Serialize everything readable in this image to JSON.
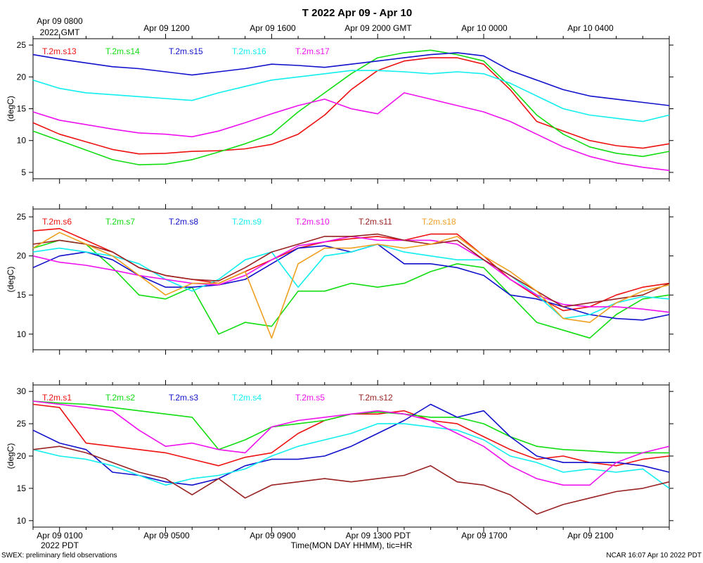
{
  "title": "T 2022 Apr 09 - Apr 10",
  "top_axis": {
    "labels": [
      "Apr 09 0800",
      "Apr 09 1200",
      "Apr 09 1600",
      "Apr 09 2000 GMT",
      "Apr 10 0000",
      "Apr 10 0400"
    ],
    "first_sub": "2022 GMT"
  },
  "bottom_axis": {
    "labels": [
      "Apr 09 0100",
      "Apr 09 0500",
      "Apr 09 0900",
      "Apr 09 1300 PDT",
      "Apr 09 1700",
      "Apr 09 2100"
    ],
    "first_sub": "2022 PDT",
    "xlabel": "Time(MON DAY HHMM), tic=HR"
  },
  "footer": {
    "left": "SWEX: preliminary field observations",
    "right": "NCAR 16:07 Apr 10 2022 PDT"
  },
  "colors": {
    "red": "#ee1111",
    "green": "#11dd11",
    "blue": "#1111cc",
    "cyan": "#11eeee",
    "magenta": "#ee11ee",
    "brown": "#992222",
    "orange": "#f0a020"
  },
  "chart_data": [
    {
      "type": "line",
      "ylabel": "(degC)",
      "ylim": [
        4,
        26
      ],
      "yticks": [
        5,
        10,
        15,
        20,
        25
      ],
      "xrange_hours": [
        0,
        24
      ],
      "series": [
        {
          "name": "T.2m.s13",
          "color": "red",
          "x": [
            0,
            1,
            2,
            3,
            4,
            5,
            6,
            7,
            8,
            9,
            10,
            11,
            12,
            13,
            14,
            15,
            16,
            17,
            18,
            19,
            20,
            21,
            22,
            23,
            24
          ],
          "y": [
            12.8,
            11,
            9.8,
            8.6,
            7.9,
            8,
            8.3,
            8.4,
            8.7,
            9.4,
            11,
            14,
            18,
            21,
            22.5,
            23,
            23,
            22,
            18,
            13,
            11.5,
            10,
            9.2,
            8.8,
            9.5
          ]
        },
        {
          "name": "T.2m.s14",
          "color": "green",
          "x": [
            0,
            1,
            2,
            3,
            4,
            5,
            6,
            7,
            8,
            9,
            10,
            11,
            12,
            13,
            14,
            15,
            16,
            17,
            18,
            19,
            20,
            21,
            22,
            23,
            24
          ],
          "y": [
            11.5,
            10,
            8.5,
            7,
            6.2,
            6.3,
            7,
            8.2,
            9.5,
            11,
            14.5,
            17.5,
            20.5,
            23,
            23.8,
            24.2,
            23.5,
            22.5,
            18.5,
            14,
            11,
            9,
            8,
            7.5,
            8.3
          ]
        },
        {
          "name": "T.2m.s15",
          "color": "blue",
          "x": [
            0,
            1,
            2,
            3,
            4,
            5,
            6,
            7,
            8,
            9,
            10,
            11,
            12,
            13,
            14,
            15,
            16,
            17,
            18,
            19,
            20,
            21,
            22,
            23,
            24
          ],
          "y": [
            23.5,
            22.8,
            22.2,
            21.6,
            21.3,
            20.8,
            20.3,
            20.8,
            21.3,
            22,
            21.8,
            21.5,
            22,
            22.5,
            23,
            23.5,
            23.8,
            23.3,
            21,
            19.5,
            18,
            17,
            16.5,
            16,
            15.5
          ]
        },
        {
          "name": "T.2m.s16",
          "color": "cyan",
          "x": [
            0,
            1,
            2,
            3,
            4,
            5,
            6,
            7,
            8,
            9,
            10,
            11,
            12,
            13,
            14,
            15,
            16,
            17,
            18,
            19,
            20,
            21,
            22,
            23,
            24
          ],
          "y": [
            19.5,
            18.2,
            17.5,
            17.2,
            16.9,
            16.6,
            16.3,
            17.5,
            18.5,
            19.5,
            20,
            20.5,
            21,
            21,
            20.8,
            20.5,
            20.8,
            20.5,
            19,
            17,
            15,
            14,
            13.5,
            13,
            14
          ]
        },
        {
          "name": "T.2m.s17",
          "color": "magenta",
          "x": [
            0,
            1,
            2,
            3,
            4,
            5,
            6,
            7,
            8,
            9,
            10,
            11,
            12,
            13,
            14,
            15,
            16,
            17,
            18,
            19,
            20,
            21,
            22,
            23,
            24
          ],
          "y": [
            14.5,
            13.2,
            12.5,
            11.8,
            11.2,
            11,
            10.6,
            11.5,
            12.8,
            14.2,
            15.5,
            16.5,
            15,
            14.2,
            17.5,
            16.5,
            15.5,
            14.5,
            13,
            11,
            9,
            7.5,
            6.5,
            5.8,
            5.3
          ]
        }
      ]
    },
    {
      "type": "line",
      "ylabel": "(degC)",
      "ylim": [
        8,
        26
      ],
      "yticks": [
        10,
        15,
        20,
        25
      ],
      "xrange_hours": [
        0,
        24
      ],
      "series": [
        {
          "name": "T.2m.s6",
          "color": "red",
          "x": [
            0,
            1,
            2,
            3,
            4,
            5,
            6,
            7,
            8,
            9,
            10,
            11,
            12,
            13,
            14,
            15,
            16,
            17,
            18,
            19,
            20,
            21,
            22,
            23,
            24
          ],
          "y": [
            23.2,
            23.5,
            22,
            20.5,
            18.5,
            17.5,
            17,
            16.5,
            18,
            19.5,
            21,
            21.8,
            22.2,
            22.5,
            22,
            22.8,
            22.8,
            20,
            17,
            14.8,
            13,
            13.5,
            15,
            16,
            16.5
          ]
        },
        {
          "name": "T.2m.s7",
          "color": "green",
          "x": [
            0,
            1,
            2,
            3,
            4,
            5,
            6,
            7,
            8,
            9,
            10,
            11,
            12,
            13,
            14,
            15,
            16,
            17,
            18,
            19,
            20,
            21,
            22,
            23,
            24
          ],
          "y": [
            21,
            22,
            21.5,
            18.5,
            15,
            14.5,
            16,
            10,
            11.5,
            11,
            15.5,
            15.5,
            16.5,
            16,
            16.5,
            18,
            19,
            18.5,
            15,
            11.5,
            10.5,
            9.5,
            12.5,
            14.5,
            15
          ]
        },
        {
          "name": "T.2m.s8",
          "color": "blue",
          "x": [
            0,
            1,
            2,
            3,
            4,
            5,
            6,
            7,
            8,
            9,
            10,
            11,
            12,
            13,
            14,
            15,
            16,
            17,
            18,
            19,
            20,
            21,
            22,
            23,
            24
          ],
          "y": [
            18.5,
            20,
            20.5,
            19.5,
            17.5,
            16,
            16,
            16.3,
            17,
            19,
            21,
            21.3,
            20.5,
            21.5,
            19,
            19,
            18.5,
            17.5,
            15,
            14.5,
            13.5,
            12.5,
            12,
            11.8,
            12.5
          ]
        },
        {
          "name": "T.2m.s9",
          "color": "cyan",
          "x": [
            0,
            1,
            2,
            3,
            4,
            5,
            6,
            7,
            8,
            9,
            10,
            11,
            12,
            13,
            14,
            15,
            16,
            17,
            18,
            19,
            20,
            21,
            22,
            23,
            24
          ],
          "y": [
            20.5,
            21,
            20.5,
            20,
            19,
            17,
            15.5,
            17,
            19.5,
            20.5,
            16,
            20,
            20.5,
            21.5,
            20.5,
            20,
            19.5,
            19.5,
            17.5,
            15,
            12,
            12.5,
            14,
            14.8,
            14.5
          ]
        },
        {
          "name": "T.2m.s10",
          "color": "magenta",
          "x": [
            0,
            1,
            2,
            3,
            4,
            5,
            6,
            7,
            8,
            9,
            10,
            11,
            12,
            13,
            14,
            15,
            16,
            17,
            18,
            19,
            20,
            21,
            22,
            23,
            24
          ],
          "y": [
            20,
            19.2,
            18.8,
            18.2,
            17.5,
            17,
            16.5,
            16.3,
            17.5,
            19.5,
            21.3,
            21.8,
            22.5,
            22,
            22,
            22,
            21.5,
            19.5,
            17,
            15,
            13.8,
            13.5,
            13.5,
            13.2,
            12.8
          ]
        },
        {
          "name": "T.2m.s11",
          "color": "brown",
          "x": [
            0,
            1,
            2,
            3,
            4,
            5,
            6,
            7,
            8,
            9,
            10,
            11,
            12,
            13,
            14,
            15,
            16,
            17,
            18,
            19,
            20,
            21,
            22,
            23,
            24
          ],
          "y": [
            21.5,
            22,
            21.5,
            20.5,
            18.5,
            17.5,
            17,
            16.8,
            18.5,
            20.5,
            21.5,
            22.5,
            22.5,
            22.8,
            22,
            21.5,
            22,
            19.5,
            17.5,
            15.5,
            13.5,
            14,
            14.5,
            15,
            16.5
          ]
        },
        {
          "name": "T.2m.s18",
          "color": "orange",
          "x": [
            0,
            1,
            2,
            3,
            4,
            5,
            6,
            7,
            8,
            9,
            10,
            11,
            12,
            13,
            14,
            15,
            16,
            17,
            18,
            19,
            20,
            21,
            22,
            23,
            24
          ],
          "y": [
            21,
            23,
            21.5,
            20,
            17.5,
            15,
            16.5,
            16.5,
            18,
            9.5,
            19,
            21,
            21,
            21.5,
            21,
            21.5,
            22.5,
            20,
            18,
            15.5,
            12,
            11.5,
            14,
            15.5,
            16.3
          ]
        }
      ]
    },
    {
      "type": "line",
      "ylabel": "(degC)",
      "ylim": [
        9,
        31
      ],
      "yticks": [
        10,
        15,
        20,
        25,
        30
      ],
      "xrange_hours": [
        0,
        24
      ],
      "series": [
        {
          "name": "T.2m.s1",
          "color": "red",
          "x": [
            0,
            1,
            2,
            3,
            4,
            5,
            6,
            7,
            8,
            9,
            10,
            11,
            12,
            13,
            14,
            15,
            16,
            17,
            18,
            19,
            20,
            21,
            22,
            23,
            24
          ],
          "y": [
            28,
            27.5,
            22,
            21.5,
            21,
            20.5,
            19.5,
            18.5,
            19.8,
            20.5,
            23.5,
            25.5,
            26.5,
            26.5,
            27,
            25.5,
            25,
            23,
            21,
            19.5,
            20,
            19,
            18.5,
            19.5,
            20
          ]
        },
        {
          "name": "T.2m.s2",
          "color": "green",
          "x": [
            0,
            1,
            2,
            3,
            4,
            5,
            6,
            7,
            8,
            9,
            10,
            11,
            12,
            13,
            14,
            15,
            16,
            17,
            18,
            19,
            20,
            21,
            22,
            23,
            24
          ],
          "y": [
            28.5,
            28.2,
            28,
            27.5,
            27,
            26.5,
            26,
            21,
            22.5,
            24.5,
            25,
            25.5,
            26.5,
            26.8,
            26.5,
            26,
            26,
            25,
            23,
            21.5,
            21,
            20.8,
            20.5,
            20.5,
            20.5
          ]
        },
        {
          "name": "T.2m.s3",
          "color": "blue",
          "x": [
            0,
            1,
            2,
            3,
            4,
            5,
            6,
            7,
            8,
            9,
            10,
            11,
            12,
            13,
            14,
            15,
            16,
            17,
            18,
            19,
            20,
            21,
            22,
            23,
            24
          ],
          "y": [
            24,
            22,
            21,
            17.5,
            17,
            16,
            15.5,
            16.5,
            18.5,
            19.5,
            19.5,
            20,
            21.5,
            23.5,
            25.5,
            28,
            26,
            27,
            23,
            20,
            19,
            19,
            19,
            18.5,
            17.5
          ]
        },
        {
          "name": "T.2m.s4",
          "color": "cyan",
          "x": [
            0,
            1,
            2,
            3,
            4,
            5,
            6,
            7,
            8,
            9,
            10,
            11,
            12,
            13,
            14,
            15,
            16,
            17,
            18,
            19,
            20,
            21,
            22,
            23,
            24
          ],
          "y": [
            21,
            20,
            19.5,
            18.5,
            17,
            15.5,
            16.5,
            17,
            18,
            20,
            21.5,
            22.5,
            23.5,
            25,
            25,
            24.5,
            24,
            22.5,
            20,
            19,
            17.5,
            18,
            17.5,
            18,
            15
          ]
        },
        {
          "name": "T.2m.s5",
          "color": "magenta",
          "x": [
            0,
            1,
            2,
            3,
            4,
            5,
            6,
            7,
            8,
            9,
            10,
            11,
            12,
            13,
            14,
            15,
            16,
            17,
            18,
            19,
            20,
            21,
            22,
            23,
            24
          ],
          "y": [
            28.5,
            28,
            27.5,
            27,
            24,
            21.5,
            22,
            21,
            20.5,
            24.5,
            25.5,
            26,
            26.5,
            27,
            26.5,
            25.5,
            23.5,
            21.5,
            18.5,
            16.5,
            15.5,
            15.5,
            19,
            20.5,
            21.5
          ]
        },
        {
          "name": "T.2m.s12",
          "color": "brown",
          "x": [
            0,
            1,
            2,
            3,
            4,
            5,
            6,
            7,
            8,
            9,
            10,
            11,
            12,
            13,
            14,
            15,
            16,
            17,
            18,
            19,
            20,
            21,
            22,
            23,
            24
          ],
          "y": [
            21,
            21.5,
            20.5,
            19,
            17.5,
            16.5,
            14,
            16.5,
            13.5,
            15.5,
            16,
            16.5,
            16,
            16.5,
            17,
            18.5,
            16,
            15.5,
            14,
            11,
            12.5,
            13.5,
            14.5,
            15,
            16
          ]
        }
      ]
    }
  ]
}
